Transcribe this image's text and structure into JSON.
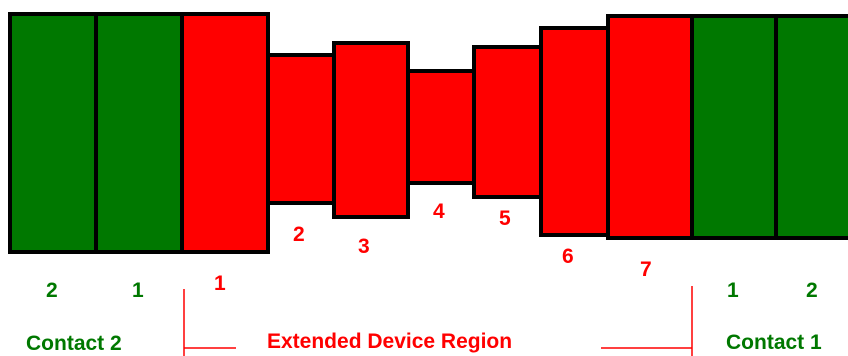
{
  "colors": {
    "contact": "#007800",
    "device": "#ff0000",
    "outline": "#000000"
  },
  "contact_left": {
    "label": "Contact 2",
    "segment_labels": [
      "2",
      "1"
    ]
  },
  "device": {
    "label": "Extended Device Region",
    "segment_labels": [
      "1",
      "2",
      "3",
      "4",
      "5",
      "6",
      "7"
    ]
  },
  "contact_right": {
    "label": "Contact  1",
    "segment_labels": [
      "1",
      "2"
    ]
  }
}
